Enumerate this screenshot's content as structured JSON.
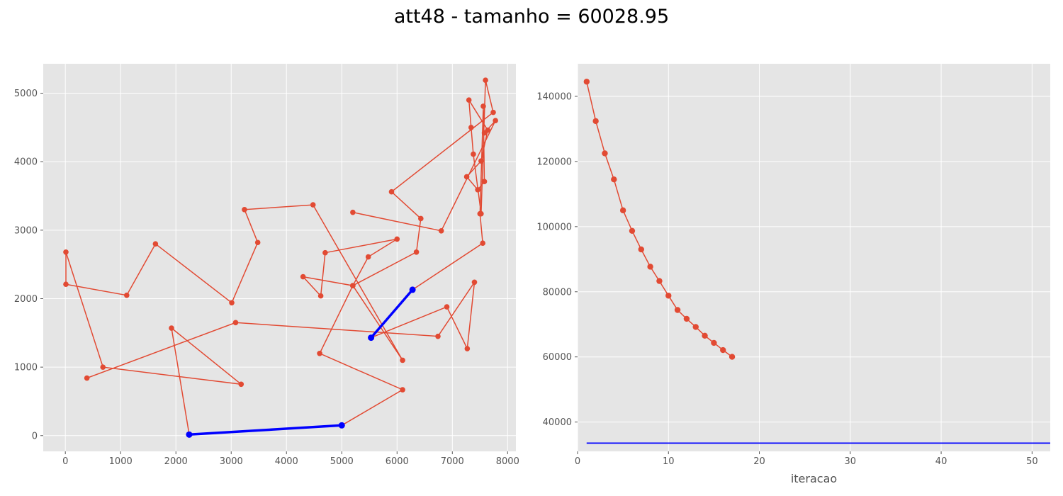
{
  "figure": {
    "title": "att48 - tamanho = 60028.95",
    "colors": {
      "background": "#e5e5e5",
      "grid": "#ffffff",
      "series": "#e24a33",
      "highlight": "#0000ff"
    }
  },
  "chart_data": [
    {
      "type": "line",
      "subtype": "tour",
      "xlabel": "",
      "ylabel": "",
      "xlim": [
        -400,
        8150
      ],
      "ylim": [
        -230,
        5430
      ],
      "xticks": [
        0,
        1000,
        2000,
        3000,
        4000,
        5000,
        6000,
        7000,
        8000
      ],
      "yticks": [
        0,
        1000,
        2000,
        3000,
        4000,
        5000
      ],
      "grid": true,
      "series": [
        {
          "role": "route",
          "points": [
            [
              5000,
              150
            ],
            [
              6100,
              670
            ],
            [
              4600,
              1200
            ],
            [
              5200,
              2190
            ],
            [
              5480,
              2610
            ],
            [
              6000,
              2870
            ],
            [
              4700,
              2670
            ],
            [
              4620,
              2040
            ],
            [
              4300,
              2320
            ],
            [
              5200,
              2190
            ],
            [
              6100,
              1100
            ],
            [
              4480,
              3370
            ],
            [
              3240,
              3300
            ],
            [
              3480,
              2820
            ],
            [
              3010,
              1940
            ],
            [
              1630,
              2800
            ],
            [
              1110,
              2050
            ],
            [
              10,
              2210
            ],
            [
              10,
              2680
            ],
            [
              680,
              1000
            ],
            [
              3180,
              750
            ],
            [
              1920,
              1570
            ],
            [
              2240,
              15
            ]
          ]
        },
        {
          "role": "route",
          "points": [
            [
              5530,
              1430
            ],
            [
              6900,
              1880
            ],
            [
              7270,
              1270
            ],
            [
              7400,
              2240
            ],
            [
              6740,
              1450
            ],
            [
              3080,
              1650
            ],
            [
              390,
              840
            ]
          ]
        },
        {
          "role": "route",
          "points": [
            [
              6280,
              2130
            ],
            [
              7550,
              2810
            ],
            [
              7500,
              3240
            ],
            [
              7560,
              4810
            ],
            [
              7580,
              3710
            ],
            [
              7460,
              3590
            ],
            [
              7260,
              3780
            ],
            [
              7520,
              4010
            ],
            [
              7640,
              4460
            ],
            [
              7300,
              4900
            ],
            [
              7340,
              4500
            ],
            [
              7380,
              4110
            ],
            [
              7520,
              3240
            ],
            [
              7600,
              5190
            ],
            [
              7740,
              4720
            ],
            [
              5900,
              3560
            ],
            [
              6430,
              3170
            ],
            [
              6350,
              2680
            ],
            [
              5200,
              2190
            ]
          ]
        },
        {
          "role": "route",
          "points": [
            [
              5200,
              3260
            ],
            [
              6800,
              2990
            ],
            [
              7780,
              4600
            ],
            [
              7580,
              4420
            ]
          ]
        },
        {
          "role": "highlight",
          "points": [
            [
              2240,
              15
            ],
            [
              5000,
              150
            ]
          ]
        },
        {
          "role": "highlight",
          "points": [
            [
              5530,
              1430
            ],
            [
              6280,
              2130
            ]
          ]
        }
      ]
    },
    {
      "type": "line",
      "xlabel": "iteracao",
      "ylabel": "",
      "xlim": [
        0,
        52
      ],
      "ylim": [
        31000,
        150000
      ],
      "xticks": [
        0,
        10,
        20,
        30,
        40,
        50
      ],
      "yticks": [
        40000,
        60000,
        80000,
        100000,
        120000,
        140000
      ],
      "grid": true,
      "series": [
        {
          "role": "tour-length",
          "x": [
            1,
            2,
            3,
            4,
            5,
            6,
            7,
            8,
            9,
            10,
            11,
            12,
            13,
            14,
            15,
            16,
            17
          ],
          "y": [
            144500,
            132400,
            122500,
            114500,
            105000,
            98700,
            93000,
            87700,
            83300,
            78800,
            74400,
            71700,
            69200,
            66500,
            64300,
            62100,
            60029
          ]
        },
        {
          "role": "reference-line",
          "x": [
            1,
            52
          ],
          "y": [
            33523,
            33523
          ]
        }
      ]
    }
  ]
}
